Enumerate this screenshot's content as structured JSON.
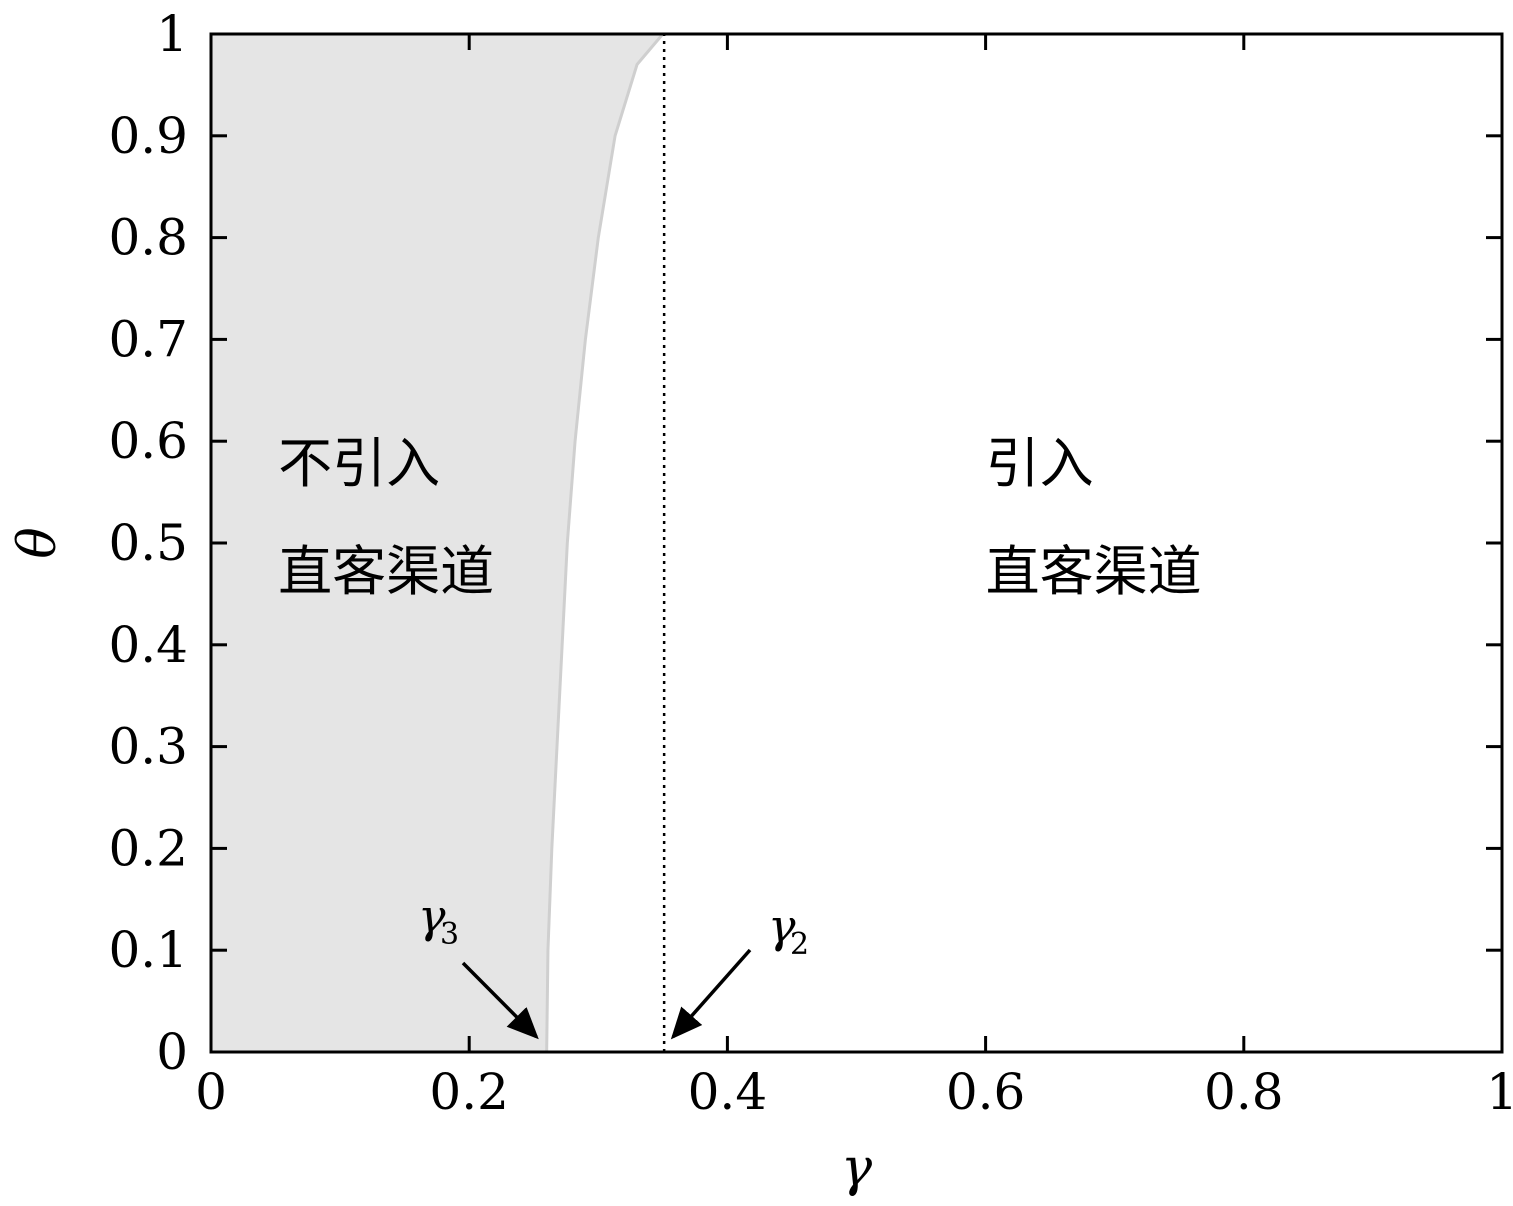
{
  "chart_data": {
    "type": "area",
    "xlabel": "γ",
    "ylabel": "θ",
    "xlim": [
      0,
      1
    ],
    "ylim": [
      0,
      1
    ],
    "x_ticks": [
      "0",
      "0.2",
      "0.4",
      "0.6",
      "0.8",
      "1"
    ],
    "y_ticks": [
      "0",
      "0.1",
      "0.2",
      "0.3",
      "0.4",
      "0.5",
      "0.6",
      "0.7",
      "0.8",
      "0.9",
      "1"
    ],
    "grid": false,
    "series": [
      {
        "fill": "#e5e5e5",
        "boundary": {
          "x": [
            0.26,
            0.261,
            0.264,
            0.268,
            0.272,
            0.276,
            0.282,
            0.29,
            0.3,
            0.313,
            0.33,
            0.35
          ],
          "y": [
            0.0,
            0.1,
            0.2,
            0.3,
            0.4,
            0.5,
            0.6,
            0.7,
            0.8,
            0.9,
            0.97,
            1.0
          ]
        }
      }
    ],
    "vlines": [
      {
        "x": 0.351,
        "style": "dotted"
      }
    ],
    "annotations": [
      {
        "main": "γ",
        "sub": "3",
        "points_to": [
          0.252,
          0.015
        ]
      },
      {
        "main": "γ",
        "sub": "2",
        "points_to": [
          0.358,
          0.015
        ]
      }
    ],
    "region_labels": [
      {
        "lines": [
          "不引入",
          "直客渠道"
        ]
      },
      {
        "lines": [
          "引入",
          "直客渠道"
        ]
      }
    ]
  }
}
